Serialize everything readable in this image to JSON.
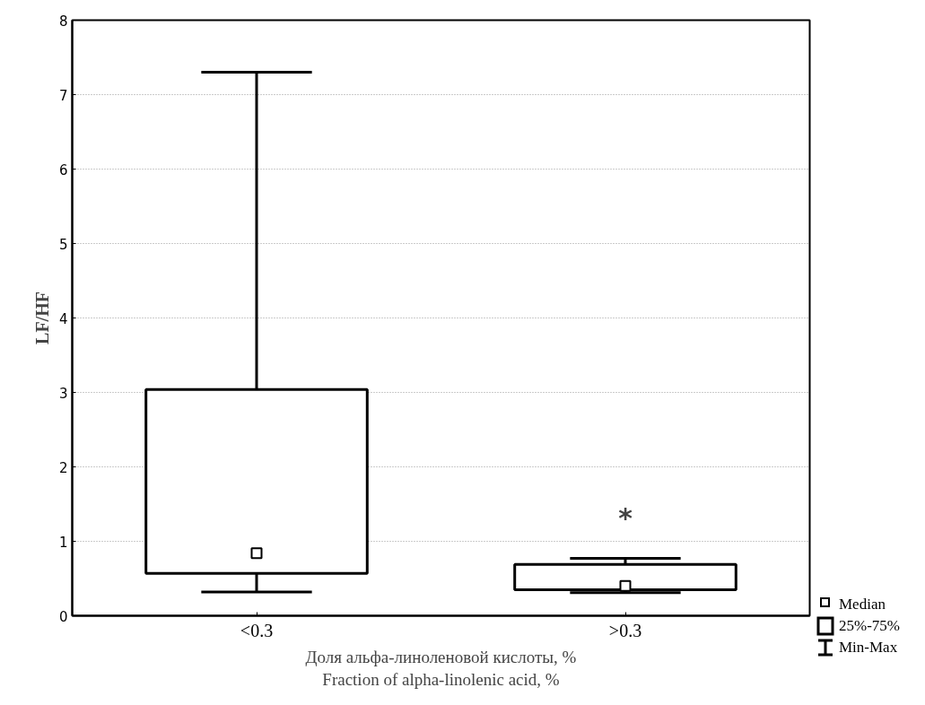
{
  "chart_data": {
    "type": "box",
    "xlabel": "Доля альфа-линоленовой кислоты, %\nFraction of alpha-linolenic acid, %",
    "ylabel": "LF/HF",
    "categories": [
      "<0.3",
      ">0.3"
    ],
    "boxes": [
      {
        "low": 0.32,
        "q1": 0.57,
        "median": 0.84,
        "q3": 3.04,
        "high": 7.3
      },
      {
        "low": 0.31,
        "q1": 0.35,
        "median": 0.4,
        "q3": 0.69,
        "high": 0.77
      }
    ],
    "ylim": [
      0,
      8
    ],
    "yticks": [
      0,
      1,
      2,
      3,
      4,
      5,
      6,
      7,
      8
    ],
    "grid": "y",
    "annotations": [
      "*",
      "Median",
      "25%-75%",
      "Min-Max"
    ]
  }
}
